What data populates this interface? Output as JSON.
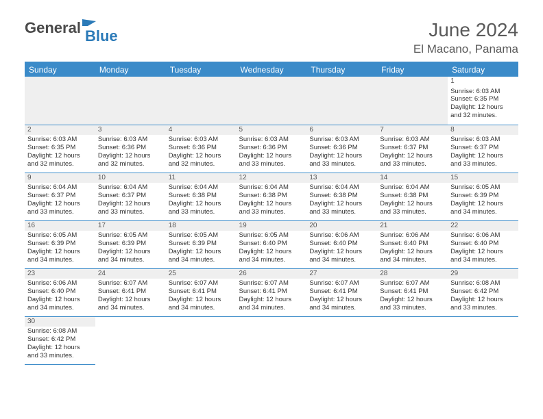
{
  "logo": {
    "general": "General",
    "blue": "Blue"
  },
  "title": {
    "month": "June 2024",
    "location": "El Macano, Panama"
  },
  "colors": {
    "header_bg": "#3b8bc9",
    "header_text": "#ffffff",
    "daynum_bg": "#efefef",
    "border": "#3b8bc9",
    "text": "#333333",
    "logo_gray": "#4a4a4a",
    "logo_blue": "#2b7ab8"
  },
  "weekdays": [
    "Sunday",
    "Monday",
    "Tuesday",
    "Wednesday",
    "Thursday",
    "Friday",
    "Saturday"
  ],
  "days": [
    {
      "n": 1,
      "sr": "6:03 AM",
      "ss": "6:35 PM",
      "dl": "12 hours and 32 minutes."
    },
    {
      "n": 2,
      "sr": "6:03 AM",
      "ss": "6:35 PM",
      "dl": "12 hours and 32 minutes."
    },
    {
      "n": 3,
      "sr": "6:03 AM",
      "ss": "6:36 PM",
      "dl": "12 hours and 32 minutes."
    },
    {
      "n": 4,
      "sr": "6:03 AM",
      "ss": "6:36 PM",
      "dl": "12 hours and 32 minutes."
    },
    {
      "n": 5,
      "sr": "6:03 AM",
      "ss": "6:36 PM",
      "dl": "12 hours and 33 minutes."
    },
    {
      "n": 6,
      "sr": "6:03 AM",
      "ss": "6:36 PM",
      "dl": "12 hours and 33 minutes."
    },
    {
      "n": 7,
      "sr": "6:03 AM",
      "ss": "6:37 PM",
      "dl": "12 hours and 33 minutes."
    },
    {
      "n": 8,
      "sr": "6:03 AM",
      "ss": "6:37 PM",
      "dl": "12 hours and 33 minutes."
    },
    {
      "n": 9,
      "sr": "6:04 AM",
      "ss": "6:37 PM",
      "dl": "12 hours and 33 minutes."
    },
    {
      "n": 10,
      "sr": "6:04 AM",
      "ss": "6:37 PM",
      "dl": "12 hours and 33 minutes."
    },
    {
      "n": 11,
      "sr": "6:04 AM",
      "ss": "6:38 PM",
      "dl": "12 hours and 33 minutes."
    },
    {
      "n": 12,
      "sr": "6:04 AM",
      "ss": "6:38 PM",
      "dl": "12 hours and 33 minutes."
    },
    {
      "n": 13,
      "sr": "6:04 AM",
      "ss": "6:38 PM",
      "dl": "12 hours and 33 minutes."
    },
    {
      "n": 14,
      "sr": "6:04 AM",
      "ss": "6:38 PM",
      "dl": "12 hours and 33 minutes."
    },
    {
      "n": 15,
      "sr": "6:05 AM",
      "ss": "6:39 PM",
      "dl": "12 hours and 34 minutes."
    },
    {
      "n": 16,
      "sr": "6:05 AM",
      "ss": "6:39 PM",
      "dl": "12 hours and 34 minutes."
    },
    {
      "n": 17,
      "sr": "6:05 AM",
      "ss": "6:39 PM",
      "dl": "12 hours and 34 minutes."
    },
    {
      "n": 18,
      "sr": "6:05 AM",
      "ss": "6:39 PM",
      "dl": "12 hours and 34 minutes."
    },
    {
      "n": 19,
      "sr": "6:05 AM",
      "ss": "6:40 PM",
      "dl": "12 hours and 34 minutes."
    },
    {
      "n": 20,
      "sr": "6:06 AM",
      "ss": "6:40 PM",
      "dl": "12 hours and 34 minutes."
    },
    {
      "n": 21,
      "sr": "6:06 AM",
      "ss": "6:40 PM",
      "dl": "12 hours and 34 minutes."
    },
    {
      "n": 22,
      "sr": "6:06 AM",
      "ss": "6:40 PM",
      "dl": "12 hours and 34 minutes."
    },
    {
      "n": 23,
      "sr": "6:06 AM",
      "ss": "6:40 PM",
      "dl": "12 hours and 34 minutes."
    },
    {
      "n": 24,
      "sr": "6:07 AM",
      "ss": "6:41 PM",
      "dl": "12 hours and 34 minutes."
    },
    {
      "n": 25,
      "sr": "6:07 AM",
      "ss": "6:41 PM",
      "dl": "12 hours and 34 minutes."
    },
    {
      "n": 26,
      "sr": "6:07 AM",
      "ss": "6:41 PM",
      "dl": "12 hours and 34 minutes."
    },
    {
      "n": 27,
      "sr": "6:07 AM",
      "ss": "6:41 PM",
      "dl": "12 hours and 34 minutes."
    },
    {
      "n": 28,
      "sr": "6:07 AM",
      "ss": "6:41 PM",
      "dl": "12 hours and 33 minutes."
    },
    {
      "n": 29,
      "sr": "6:08 AM",
      "ss": "6:42 PM",
      "dl": "12 hours and 33 minutes."
    },
    {
      "n": 30,
      "sr": "6:08 AM",
      "ss": "6:42 PM",
      "dl": "12 hours and 33 minutes."
    }
  ],
  "labels": {
    "sunrise": "Sunrise:",
    "sunset": "Sunset:",
    "daylight": "Daylight:"
  },
  "layout": {
    "first_weekday_index": 6,
    "total_days": 30
  }
}
